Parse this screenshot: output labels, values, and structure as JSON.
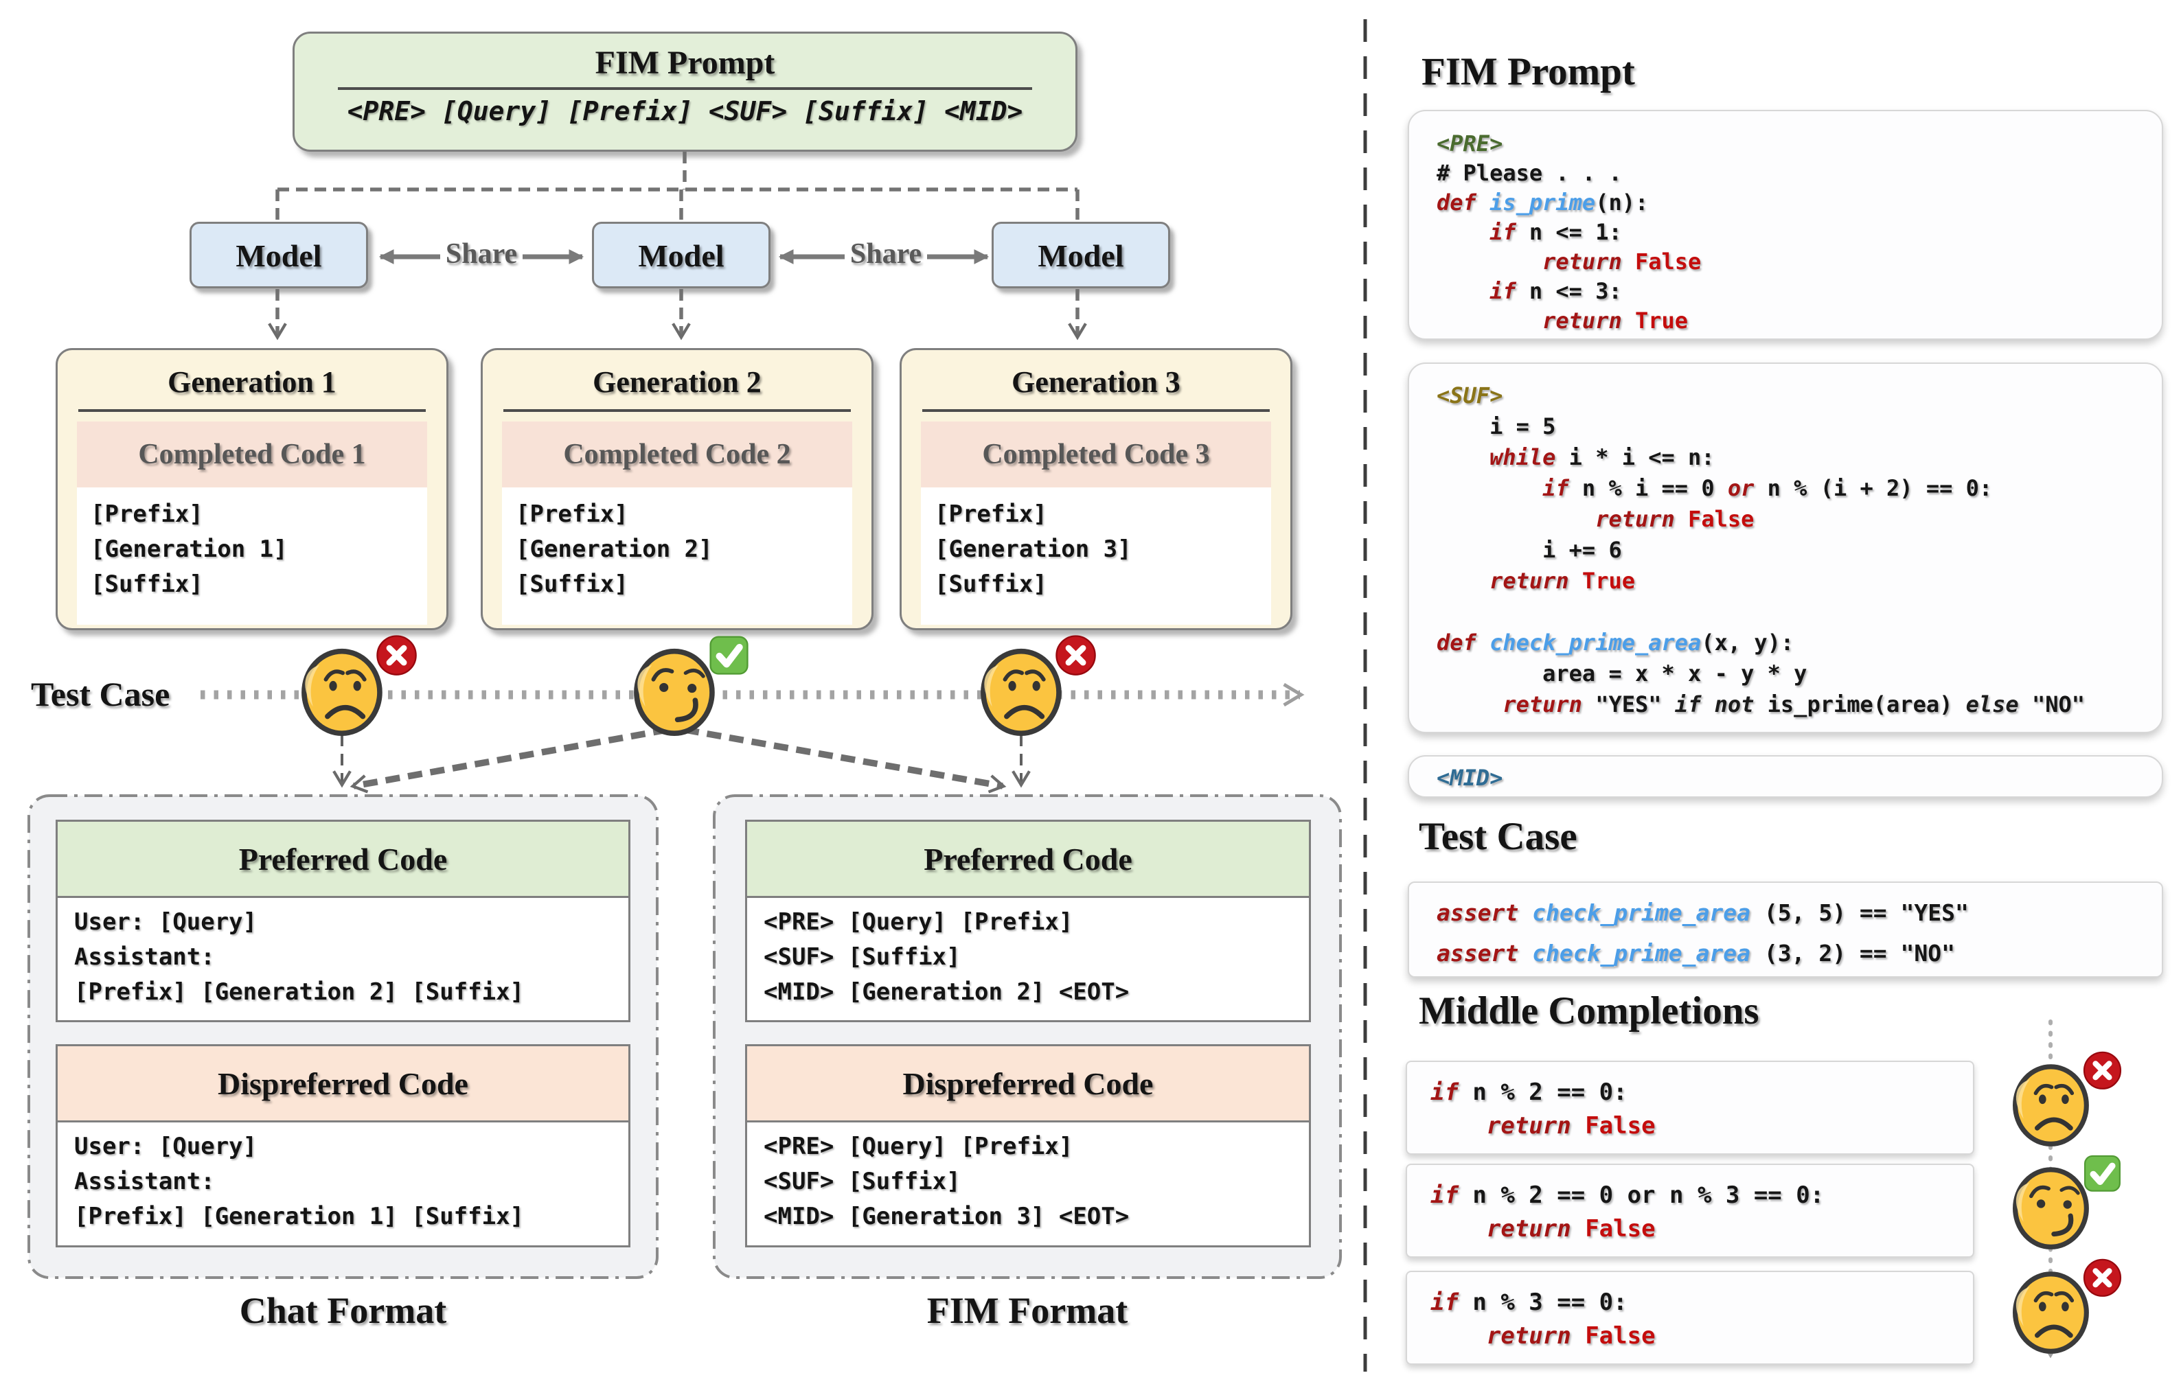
{
  "colors": {
    "keyword_red": "#A31515",
    "literal_red": "#C40D0D",
    "function_blue": "#4C9EE8",
    "tag_pre_green": "#4A6B2F",
    "tag_suf_olive": "#8A7418",
    "tag_mid_blue": "#2F6C94",
    "box_green": "#E3EFD9",
    "box_blue": "#DCE9F6",
    "box_cream": "#FBF4DE",
    "band_pink": "#F8E2D7",
    "header_green": "#DFEDD3",
    "header_pink": "#FBE5D6",
    "container_gray": "#F1F2F4",
    "pass_green": "#6FBE4C",
    "fail_red": "#C5161D"
  },
  "icons": {
    "pass_badge": "green-check-badge",
    "fail_badge": "red-cross-badge",
    "pass_face": "smirk-emoji",
    "fail_face": "sad-emoji"
  },
  "left": {
    "fim_prompt": {
      "title": "FIM Prompt",
      "subtitle": "<PRE> [Query] [Prefix] <SUF> [Suffix] <MID>"
    },
    "models": [
      "Model",
      "Model",
      "Model"
    ],
    "share_label": "Share",
    "generations": [
      {
        "title": "Generation 1",
        "header": "Completed Code 1",
        "lines": [
          "[Prefix]",
          "[Generation 1]",
          "[Suffix]"
        ]
      },
      {
        "title": "Generation 2",
        "header": "Completed Code 2",
        "lines": [
          "[Prefix]",
          "[Generation 2]",
          "[Suffix]"
        ]
      },
      {
        "title": "Generation 3",
        "header": "Completed Code 3",
        "lines": [
          "[Prefix]",
          "[Generation 3]",
          "[Suffix]"
        ]
      }
    ],
    "test_case_label": "Test Case",
    "test_results": [
      "fail",
      "pass",
      "fail"
    ],
    "chat_format": {
      "label": "Chat Format",
      "preferred": {
        "title": "Preferred Code",
        "lines": [
          "User: [Query]",
          "Assistant:",
          "[Prefix] [Generation 2] [Suffix]"
        ]
      },
      "dispreferred": {
        "title": "Dispreferred Code",
        "lines": [
          "User: [Query]",
          "Assistant:",
          "[Prefix] [Generation 1] [Suffix]"
        ]
      }
    },
    "fim_format": {
      "label": "FIM Format",
      "preferred": {
        "title": "Preferred Code",
        "lines": [
          "<PRE> [Query] [Prefix]",
          "<SUF> [Suffix]",
          "<MID> [Generation 2] <EOT>"
        ]
      },
      "dispreferred": {
        "title": "Dispreferred Code",
        "lines": [
          "<PRE> [Query] [Prefix]",
          "<SUF> [Suffix]",
          "<MID> [Generation 3] <EOT>"
        ]
      }
    }
  },
  "right": {
    "fim_prompt_heading": "FIM Prompt",
    "pre_block": {
      "lines": [
        [
          {
            "c": "tagpre",
            "t": "<PRE>"
          }
        ],
        [
          {
            "c": "plain",
            "t": "# Please . . ."
          }
        ],
        [
          {
            "c": "kw",
            "t": "def"
          },
          {
            "c": "plain",
            "t": " "
          },
          {
            "c": "fn",
            "t": "is_prime"
          },
          {
            "c": "plain",
            "t": "(n):"
          }
        ],
        [
          {
            "c": "plain",
            "t": "    "
          },
          {
            "c": "kw",
            "t": "if"
          },
          {
            "c": "plain",
            "t": " n <= 1:"
          }
        ],
        [
          {
            "c": "plain",
            "t": "        "
          },
          {
            "c": "kw",
            "t": "return"
          },
          {
            "c": "plain",
            "t": " "
          },
          {
            "c": "lit",
            "t": "False"
          }
        ],
        [
          {
            "c": "plain",
            "t": "    "
          },
          {
            "c": "kw",
            "t": "if"
          },
          {
            "c": "plain",
            "t": " n <= 3:"
          }
        ],
        [
          {
            "c": "plain",
            "t": "        "
          },
          {
            "c": "kw",
            "t": "return"
          },
          {
            "c": "plain",
            "t": " "
          },
          {
            "c": "lit",
            "t": "True"
          }
        ]
      ]
    },
    "suf_block": {
      "lines": [
        [
          {
            "c": "tagsuf",
            "t": "<SUF>"
          }
        ],
        [
          {
            "c": "plain",
            "t": "    i = 5"
          }
        ],
        [
          {
            "c": "plain",
            "t": "    "
          },
          {
            "c": "kw",
            "t": "while"
          },
          {
            "c": "plain",
            "t": " i * i <= n:"
          }
        ],
        [
          {
            "c": "plain",
            "t": "        "
          },
          {
            "c": "kw",
            "t": "if"
          },
          {
            "c": "plain",
            "t": " n % i == 0 "
          },
          {
            "c": "kw",
            "t": "or"
          },
          {
            "c": "plain",
            "t": " n % (i + 2) == 0:"
          }
        ],
        [
          {
            "c": "plain",
            "t": "            "
          },
          {
            "c": "kw",
            "t": "return"
          },
          {
            "c": "plain",
            "t": " "
          },
          {
            "c": "lit",
            "t": "False"
          }
        ],
        [
          {
            "c": "plain",
            "t": "        i += 6"
          }
        ],
        [
          {
            "c": "plain",
            "t": "    "
          },
          {
            "c": "kw",
            "t": "return"
          },
          {
            "c": "plain",
            "t": " "
          },
          {
            "c": "lit",
            "t": "True"
          }
        ],
        [],
        [
          {
            "c": "kw",
            "t": "def"
          },
          {
            "c": "plain",
            "t": " "
          },
          {
            "c": "fn",
            "t": "check_prime_area"
          },
          {
            "c": "plain",
            "t": "(x, y):"
          }
        ],
        [
          {
            "c": "plain",
            "t": "        area = x * x - y * y"
          }
        ],
        [
          {
            "c": "plain",
            "t": "     "
          },
          {
            "c": "kw",
            "t": "return"
          },
          {
            "c": "plain",
            "t": " \"YES\" "
          },
          {
            "c": "kw2",
            "t": "if not"
          },
          {
            "c": "plain",
            "t": " is_prime(area) "
          },
          {
            "c": "kw2",
            "t": "else"
          },
          {
            "c": "plain",
            "t": " \"NO\""
          }
        ]
      ]
    },
    "mid_block": {
      "lines": [
        [
          {
            "c": "tagmid",
            "t": "<MID>"
          }
        ]
      ]
    },
    "test_case_heading": "Test Case",
    "test_block": {
      "lines": [
        [
          {
            "c": "kw",
            "t": "assert"
          },
          {
            "c": "plain",
            "t": " "
          },
          {
            "c": "fn",
            "t": "check_prime_area"
          },
          {
            "c": "plain",
            "t": " (5, 5) == \"YES\""
          }
        ],
        [
          {
            "c": "kw",
            "t": "assert"
          },
          {
            "c": "plain",
            "t": " "
          },
          {
            "c": "fn",
            "t": "check_prime_area"
          },
          {
            "c": "plain",
            "t": " (3, 2) == \"NO\""
          }
        ]
      ]
    },
    "middle_completions_heading": "Middle Completions",
    "completions": [
      {
        "result": "fail",
        "lines": [
          [
            {
              "c": "kw",
              "t": "if"
            },
            {
              "c": "plain",
              "t": " n % 2 == 0:"
            }
          ],
          [
            {
              "c": "plain",
              "t": "    "
            },
            {
              "c": "kw",
              "t": "return"
            },
            {
              "c": "plain",
              "t": " "
            },
            {
              "c": "lit",
              "t": "False"
            }
          ]
        ]
      },
      {
        "result": "pass",
        "lines": [
          [
            {
              "c": "kw",
              "t": "if"
            },
            {
              "c": "plain",
              "t": " n % 2 == 0 or n % 3 == 0:"
            }
          ],
          [
            {
              "c": "plain",
              "t": "    "
            },
            {
              "c": "kw",
              "t": "return"
            },
            {
              "c": "plain",
              "t": " "
            },
            {
              "c": "lit",
              "t": "False"
            }
          ]
        ]
      },
      {
        "result": "fail",
        "lines": [
          [
            {
              "c": "kw",
              "t": "if"
            },
            {
              "c": "plain",
              "t": " n % 3 == 0:"
            }
          ],
          [
            {
              "c": "plain",
              "t": "    "
            },
            {
              "c": "kw",
              "t": "return"
            },
            {
              "c": "plain",
              "t": " "
            },
            {
              "c": "lit",
              "t": "False"
            }
          ]
        ]
      }
    ]
  }
}
